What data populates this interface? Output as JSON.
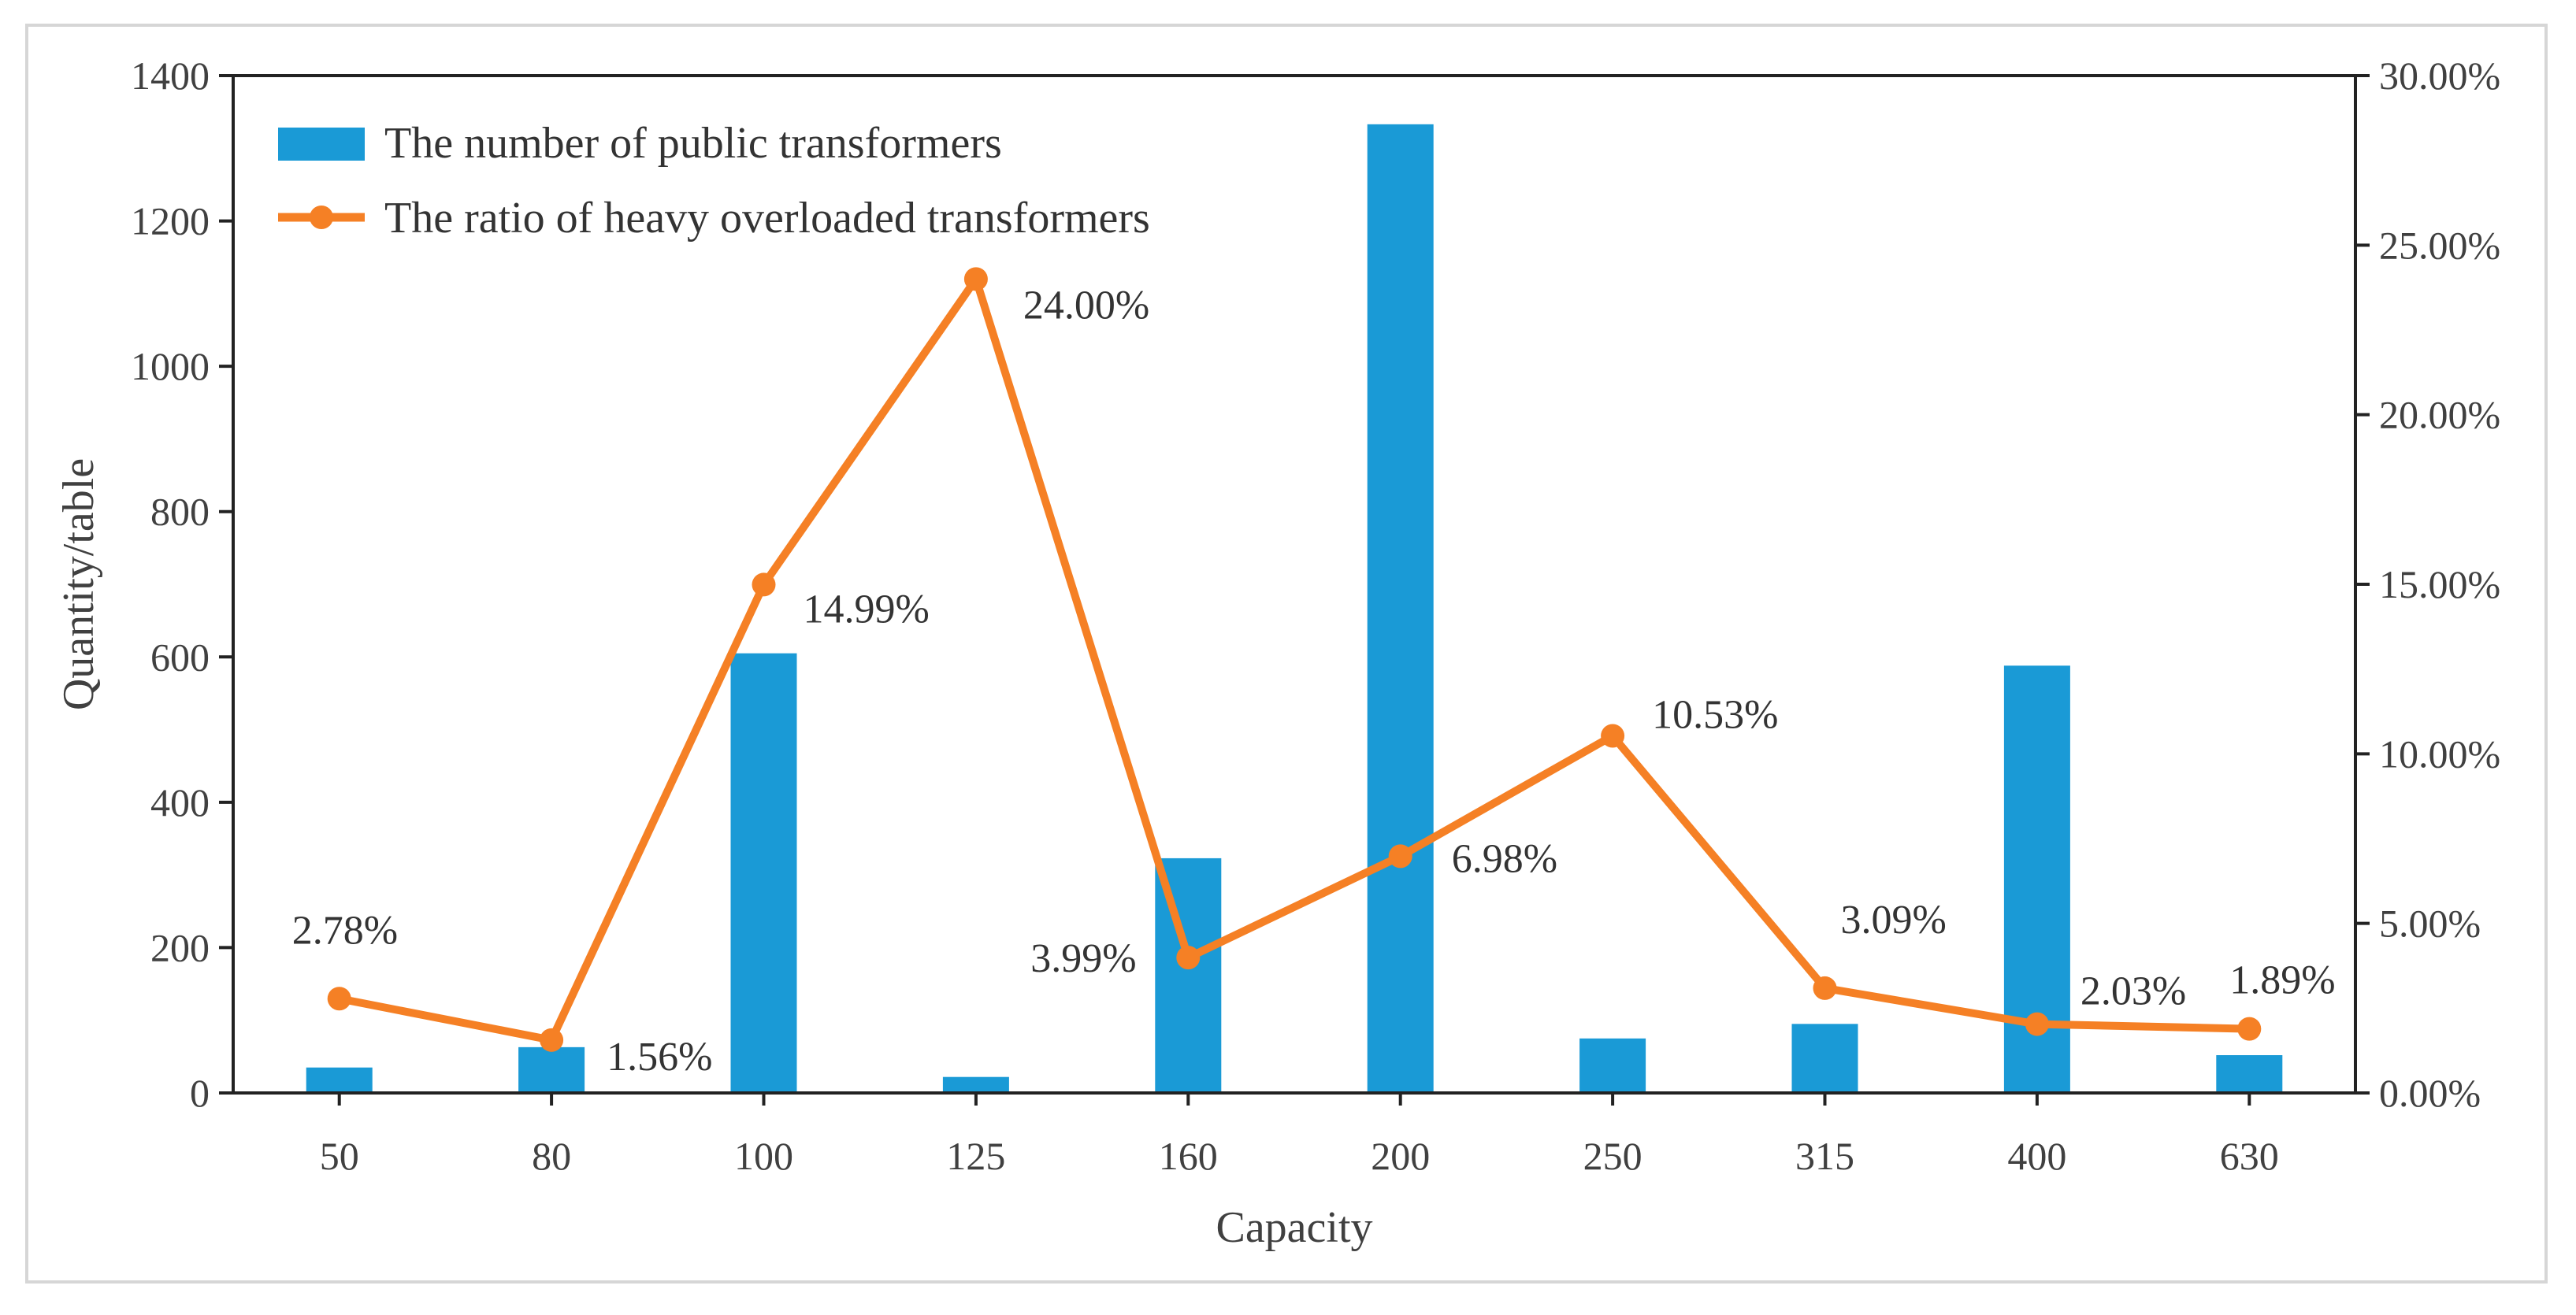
{
  "chart_data": {
    "type": "bar",
    "categories": [
      "50",
      "80",
      "100",
      "125",
      "160",
      "200",
      "250",
      "315",
      "400",
      "630"
    ],
    "series": [
      {
        "name": "The number of public transformers",
        "type": "bar",
        "axis": "left",
        "color": "#1a9ad6",
        "values": [
          35,
          63,
          605,
          22,
          323,
          1333,
          75,
          95,
          588,
          52
        ]
      },
      {
        "name": "The ratio of heavy overloaded transformers",
        "type": "line",
        "axis": "right",
        "color": "#f58025",
        "values": [
          2.78,
          1.56,
          14.99,
          24.0,
          3.99,
          6.98,
          10.53,
          3.09,
          2.03,
          1.89
        ],
        "labels": [
          "2.78%",
          "1.56%",
          "14.99%",
          "24.00%",
          "3.99%",
          "6.98%",
          "10.53%",
          "3.09%",
          "2.03%",
          "1.89%"
        ]
      }
    ],
    "xlabel": "Capacity",
    "ylabel": "Quantity/table",
    "ylim": [
      0,
      1400
    ],
    "y_ticks": [
      "0",
      "200",
      "400",
      "600",
      "800",
      "1000",
      "1200",
      "1400"
    ],
    "y2lim": [
      0,
      30
    ],
    "y2_ticks": [
      "0.00%",
      "5.00%",
      "10.00%",
      "15.00%",
      "20.00%",
      "25.00%",
      "30.00%"
    ],
    "grid": false,
    "legend_position": "top-left"
  }
}
